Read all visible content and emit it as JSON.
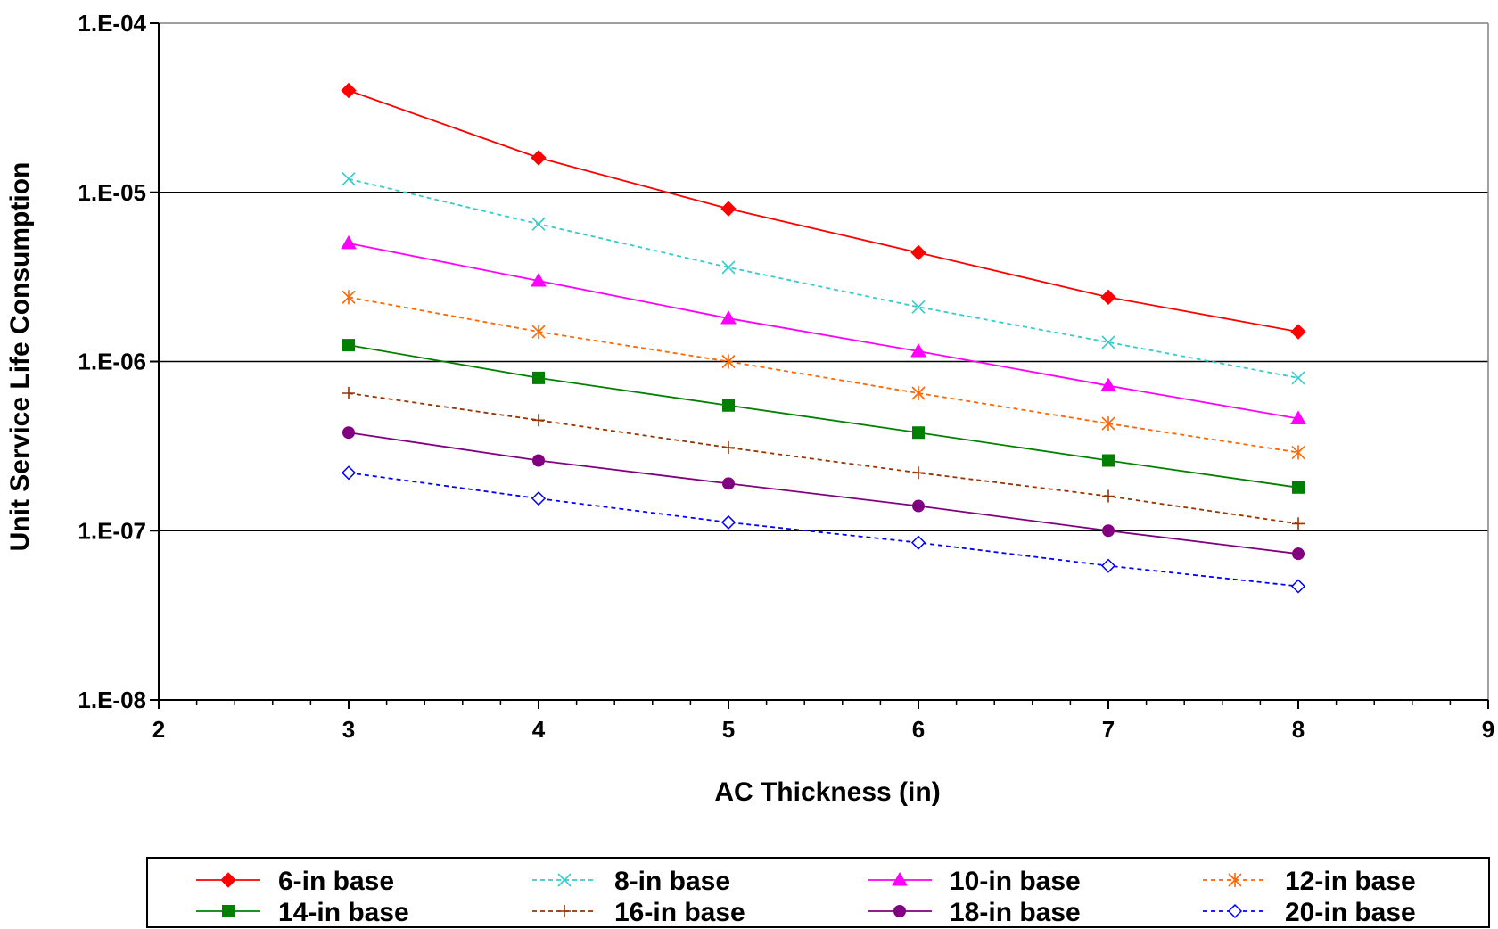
{
  "chart_data": {
    "type": "line",
    "title": "",
    "xlabel": "AC Thickness (in)",
    "ylabel": "Unit Service Life Consumption",
    "xlim": [
      2,
      9
    ],
    "ylim": [
      1e-08,
      0.0001
    ],
    "yscale": "log",
    "x_ticks": [
      "2",
      "3",
      "4",
      "5",
      "6",
      "7",
      "8",
      "9"
    ],
    "y_ticks": [
      "1.E-08",
      "1.E-07",
      "1.E-06",
      "1.E-05",
      "1.E-04"
    ],
    "grid": "horizontal major lines",
    "legend_position": "bottom",
    "x": [
      3,
      4,
      5,
      6,
      7,
      8
    ],
    "series": [
      {
        "name": "6-in base",
        "color": "#ff0000",
        "marker": "diamond-filled",
        "dashed": false,
        "values": [
          4e-05,
          1.6e-05,
          8e-06,
          4.4e-06,
          2.4e-06,
          1.5e-06
        ]
      },
      {
        "name": "8-in base",
        "color": "#33cccc",
        "marker": "x",
        "dashed": true,
        "values": [
          1.2e-05,
          6.5e-06,
          3.6e-06,
          2.1e-06,
          1.3e-06,
          8e-07
        ]
      },
      {
        "name": "10-in base",
        "color": "#ff00ff",
        "marker": "triangle-filled",
        "dashed": false,
        "values": [
          5e-06,
          3e-06,
          1.8e-06,
          1.15e-06,
          7.2e-07,
          4.6e-07
        ]
      },
      {
        "name": "12-in base",
        "color": "#ff6600",
        "marker": "asterisk",
        "dashed": true,
        "values": [
          2.4e-06,
          1.5e-06,
          1e-06,
          6.5e-07,
          4.3e-07,
          2.9e-07
        ]
      },
      {
        "name": "14-in base",
        "color": "#008000",
        "marker": "square-filled",
        "dashed": false,
        "values": [
          1.25e-06,
          8e-07,
          5.5e-07,
          3.8e-07,
          2.6e-07,
          1.8e-07
        ]
      },
      {
        "name": "16-in base",
        "color": "#993300",
        "marker": "plus",
        "dashed": true,
        "values": [
          6.5e-07,
          4.5e-07,
          3.1e-07,
          2.2e-07,
          1.6e-07,
          1.1e-07
        ]
      },
      {
        "name": "18-in base",
        "color": "#800080",
        "marker": "circle-filled",
        "dashed": false,
        "values": [
          3.8e-07,
          2.6e-07,
          1.9e-07,
          1.4e-07,
          1e-07,
          7.3e-08
        ]
      },
      {
        "name": "20-in base",
        "color": "#0000ff",
        "marker": "diamond-open",
        "dashed": true,
        "values": [
          2.2e-07,
          1.55e-07,
          1.12e-07,
          8.5e-08,
          6.2e-08,
          4.7e-08
        ]
      }
    ]
  }
}
